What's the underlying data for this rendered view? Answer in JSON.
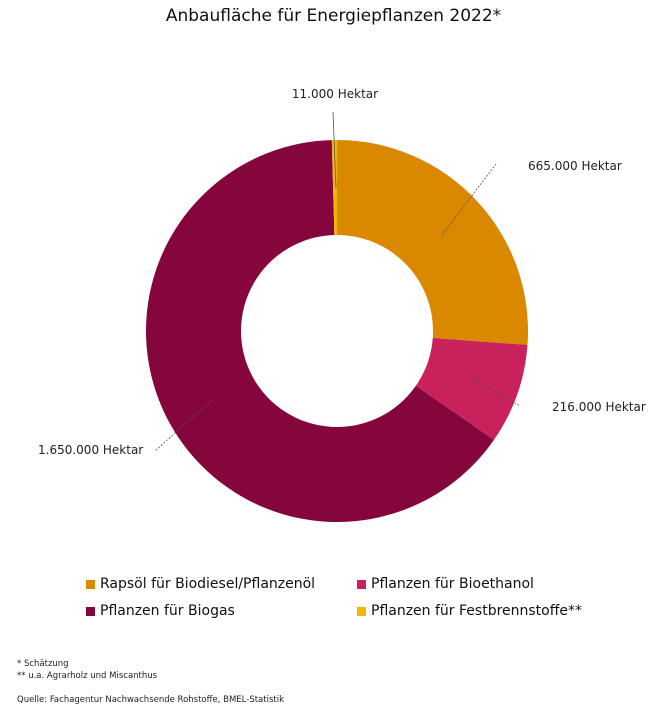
{
  "chart_data": {
    "type": "pie",
    "variant": "donut",
    "title": "Anbaufläche für Energiepflanzen 2022*",
    "categories": [
      "Rapsöl für Biodiesel/Pflanzenöl",
      "Pflanzen für Bioethanol",
      "Pflanzen für Biogas",
      "Pflanzen für Festbrennstoffe**"
    ],
    "values": [
      665000,
      216000,
      1650000,
      11000
    ],
    "unit": "Hektar",
    "data_labels": [
      "665.000 Hektar",
      "216.000 Hektar",
      "1.650.000 Hektar",
      "11.000 Hektar"
    ],
    "colors": [
      "#D98800",
      "#C8215B",
      "#85063C",
      "#F2B705"
    ],
    "legend_position": "bottom"
  },
  "footnotes": [
    "* Schätzung",
    "** u.a. Agrarholz und  Miscanthus"
  ],
  "source": "Quelle: Fachagentur Nachwachsende Rohstoffe, BMEL-Statistik"
}
